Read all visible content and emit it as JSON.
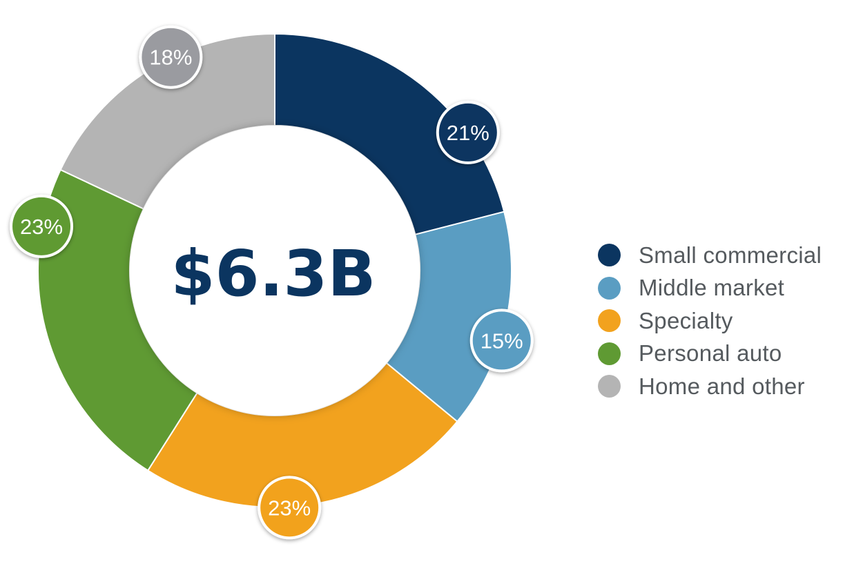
{
  "chart_data": {
    "type": "pie",
    "title": "",
    "center_label": "$6.3B",
    "categories": [
      "Small commercial",
      "Middle market",
      "Specialty",
      "Personal auto",
      "Home and other"
    ],
    "values": [
      21,
      15,
      23,
      23,
      18
    ],
    "value_labels": [
      "21%",
      "15%",
      "23%",
      "23%",
      "18%"
    ],
    "colors": [
      "#0b3560",
      "#5a9dc2",
      "#f2a21e",
      "#5f9a33",
      "#b4b4b4"
    ],
    "badge_colors": [
      "#0b3560",
      "#5a9dc2",
      "#f2a21e",
      "#5f9a33",
      "#9a9ba0"
    ],
    "center_text_color": "#0b3560",
    "donut": true,
    "legend_position": "right"
  }
}
